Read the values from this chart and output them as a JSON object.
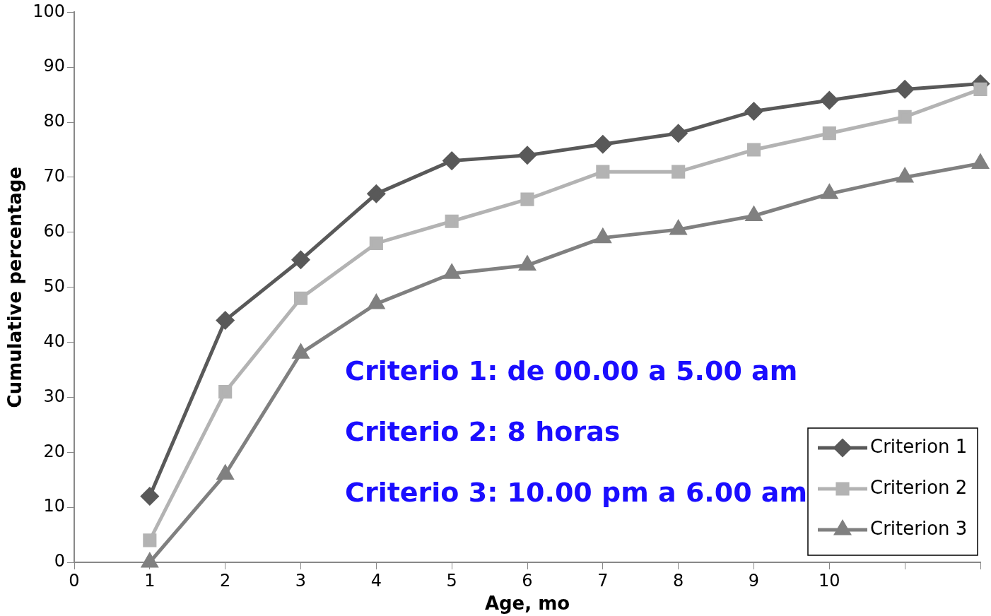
{
  "chart_data": {
    "type": "line",
    "xlabel": "Age, mo",
    "ylabel": "Cumulative percentage",
    "x": [
      1,
      2,
      3,
      4,
      5,
      6,
      7,
      8,
      9,
      10,
      11,
      12
    ],
    "series": [
      {
        "name": "Criterion 1",
        "color": "#595959",
        "marker": "diamond",
        "values": [
          12,
          44,
          55,
          67,
          73,
          74,
          76,
          78,
          82,
          84,
          86,
          87
        ]
      },
      {
        "name": "Criterion 2",
        "color": "#b3b3b3",
        "marker": "square",
        "values": [
          4,
          31,
          48,
          58,
          62,
          66,
          71,
          71,
          75,
          78,
          81,
          86
        ]
      },
      {
        "name": "Criterion 3",
        "color": "#808080",
        "marker": "triangle",
        "values": [
          0,
          16,
          38,
          47,
          52.5,
          54,
          59,
          60.5,
          63,
          67,
          70,
          72.5
        ]
      }
    ],
    "xlim": [
      0,
      12
    ],
    "xticks": [
      0,
      1,
      2,
      3,
      4,
      5,
      6,
      7,
      8,
      9,
      10,
      {
        "value": 11,
        "label": null
      },
      {
        "value": 12,
        "label": null
      }
    ],
    "ylim": [
      0,
      100
    ],
    "yticks": [
      0,
      10,
      20,
      30,
      40,
      50,
      60,
      70,
      80,
      90,
      100
    ],
    "grid": false,
    "legend": "bottom right",
    "line_style": "solid",
    "annotations": [
      "Criterio 1: de 00.00 a 5.00 am",
      "Criterio 2: 8 horas",
      "Criterio 3: 10.00 pm a 6.00 am"
    ]
  }
}
